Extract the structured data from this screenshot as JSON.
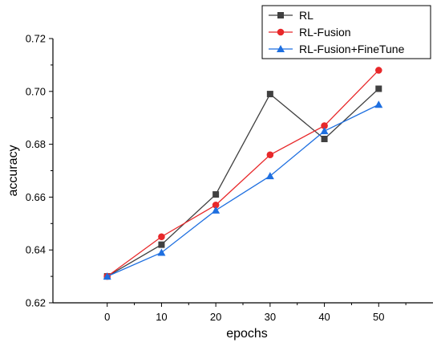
{
  "chart_data": {
    "type": "line",
    "title": "",
    "xlabel": "epochs",
    "ylabel": "accuracy",
    "x": [
      0,
      10,
      20,
      30,
      40,
      50
    ],
    "xlim": [
      -10,
      60
    ],
    "ylim": [
      0.62,
      0.72
    ],
    "xticks": [
      "0",
      "10",
      "20",
      "30",
      "40",
      "50"
    ],
    "yticks": [
      "0.62",
      "0.64",
      "0.66",
      "0.68",
      "0.70",
      "0.72"
    ],
    "grid": false,
    "legend_position": "top-right",
    "series": [
      {
        "name": "RL",
        "color": "#404040",
        "marker": "square",
        "values": [
          0.63,
          0.642,
          0.661,
          0.699,
          0.682,
          0.701
        ]
      },
      {
        "name": "RL-Fusion",
        "color": "#e8282a",
        "marker": "circle",
        "values": [
          0.63,
          0.645,
          0.657,
          0.676,
          0.687,
          0.708
        ]
      },
      {
        "name": "RL-Fusion+FineTune",
        "color": "#1e6fe0",
        "marker": "triangle",
        "values": [
          0.63,
          0.639,
          0.655,
          0.668,
          0.685,
          0.695
        ]
      }
    ]
  }
}
